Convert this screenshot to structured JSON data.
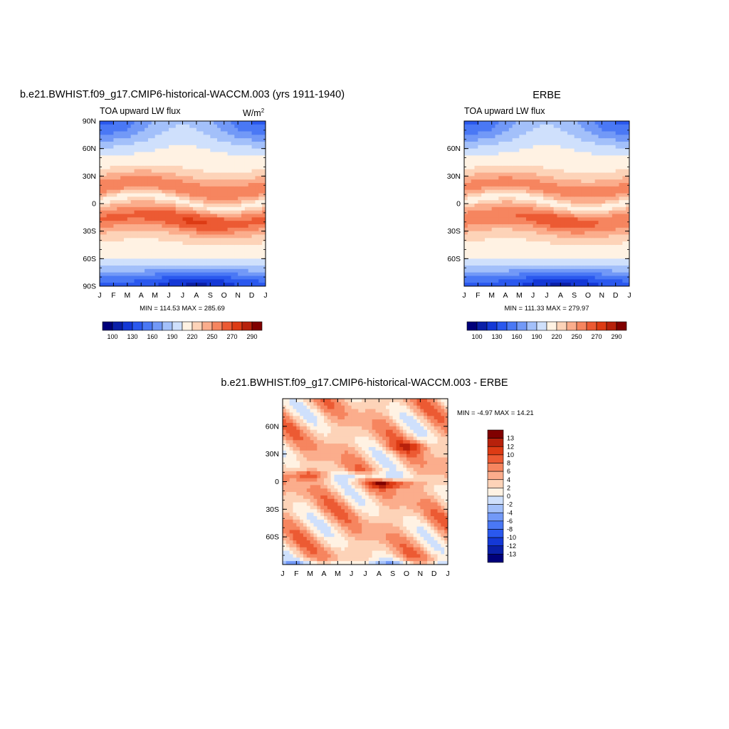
{
  "colors": {
    "abs_levels": [
      "#00007a",
      "#0a1fa8",
      "#1438d6",
      "#2a58ee",
      "#4a78f5",
      "#7299f7",
      "#a3c0fa",
      "#cfe0fc",
      "#fff2e3",
      "#fdd3b8",
      "#fbad8c",
      "#f6855f",
      "#ec5a33",
      "#dd3b14",
      "#b7210b",
      "#800000"
    ],
    "diff_levels": [
      "#00007a",
      "#0a1fa8",
      "#1438d6",
      "#2a58ee",
      "#4a78f5",
      "#7299f7",
      "#a3c0fa",
      "#cfe0fc",
      "#fff2e3",
      "#fdd3b8",
      "#fbad8c",
      "#f6855f",
      "#ec5a33",
      "#dd3b14",
      "#b7210b",
      "#800000"
    ],
    "frame": "#000000"
  },
  "chart_data": [
    {
      "type": "heatmap",
      "title": "b.e21.BWHIST.f09_g17.CMIP6-historical-WACCM.003 (yrs 1911-1940)",
      "left_string": "TOA upward LW flux",
      "units": "W/m",
      "units_sup": "2",
      "x_ticks": [
        "J",
        "F",
        "M",
        "A",
        "M",
        "J",
        "J",
        "A",
        "S",
        "O",
        "N",
        "D",
        "J"
      ],
      "y_ticks": [
        "90N",
        "60N",
        "30N",
        "0",
        "30S",
        "60S",
        "90S"
      ],
      "y_tick_values": [
        90,
        60,
        30,
        0,
        -30,
        -60,
        -90
      ],
      "ylim": [
        -90,
        90
      ],
      "stats": "MIN = 114.53 MAX = 285.69",
      "min": 114.53,
      "max": 285.69,
      "colorbar_labels": [
        "100",
        "130",
        "160",
        "190",
        "220",
        "250",
        "270",
        "290"
      ],
      "colorbar_orientation": "horizontal"
    },
    {
      "type": "heatmap",
      "title": "ERBE",
      "left_string": "TOA upward LW flux",
      "x_ticks": [
        "J",
        "F",
        "M",
        "A",
        "M",
        "J",
        "J",
        "A",
        "S",
        "O",
        "N",
        "D",
        "J"
      ],
      "y_ticks": [
        "60N",
        "30N",
        "0",
        "30S",
        "60S"
      ],
      "y_tick_values": [
        60,
        30,
        0,
        -30,
        -60
      ],
      "ylim": [
        -90,
        90
      ],
      "stats": "MIN = 111.33 MAX = 279.97",
      "min": 111.33,
      "max": 279.97,
      "colorbar_labels": [
        "100",
        "130",
        "160",
        "190",
        "220",
        "250",
        "270",
        "290"
      ],
      "colorbar_orientation": "horizontal"
    },
    {
      "type": "heatmap",
      "title": "b.e21.BWHIST.f09_g17.CMIP6-historical-WACCM.003 - ERBE",
      "x_ticks": [
        "J",
        "F",
        "M",
        "A",
        "M",
        "J",
        "J",
        "A",
        "S",
        "O",
        "N",
        "D",
        "J"
      ],
      "y_ticks": [
        "60N",
        "30N",
        "0",
        "30S",
        "60S"
      ],
      "y_tick_values": [
        60,
        30,
        0,
        -30,
        -60
      ],
      "ylim": [
        -90,
        90
      ],
      "stats": "MIN =  -4.97 MAX =  14.21",
      "min": -4.97,
      "max": 14.21,
      "colorbar_labels": [
        "13",
        "12",
        "10",
        "8",
        "6",
        "4",
        "2",
        "0",
        "-2",
        "-4",
        "-6",
        "-8",
        "-10",
        "-12",
        "-13"
      ],
      "colorbar_orientation": "vertical"
    }
  ]
}
